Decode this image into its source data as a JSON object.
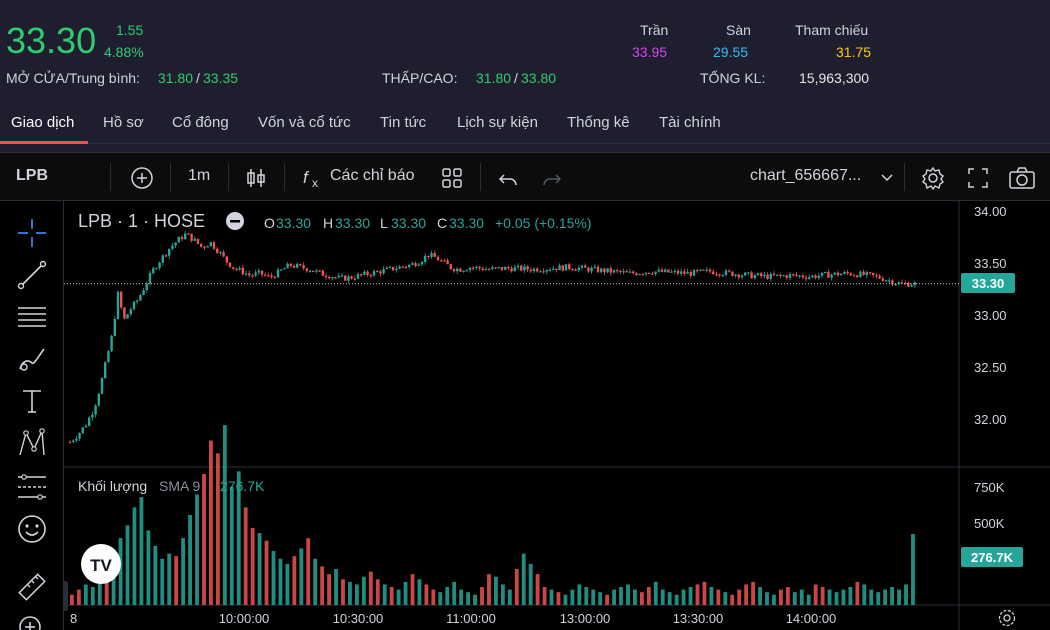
{
  "quote": {
    "price": "33.30",
    "change": "1.55",
    "change_pct": "4.88%",
    "open_avg_label": "MỞ CỬA/Trung bình:",
    "open": "31.80",
    "avg": "33.35",
    "low_high_label": "THẤP/CAO:",
    "low": "31.80",
    "high": "33.80",
    "ceiling_label": "Trần",
    "ceiling": "33.95",
    "floor_label": "Sàn",
    "floor": "29.55",
    "ref_label": "Tham chiếu",
    "ref": "31.75",
    "total_vol_label": "TỔNG KL:",
    "total_vol": "15,963,300",
    "colors": {
      "up": "#2ecc71",
      "ceiling": "#d946ef",
      "floor": "#38bdf8",
      "ref": "#facc15"
    }
  },
  "tabs": [
    {
      "label": "Giao dịch",
      "active": true
    },
    {
      "label": "Hồ sơ"
    },
    {
      "label": "Cổ đông"
    },
    {
      "label": "Vốn và cổ tức"
    },
    {
      "label": "Tin tức"
    },
    {
      "label": "Lịch sự kiện"
    },
    {
      "label": "Thống kê"
    },
    {
      "label": "Tài chính"
    }
  ],
  "toolbar": {
    "symbol": "LPB",
    "interval": "1m",
    "indicators_label": "Các chỉ báo",
    "layout_name": "chart_656667..."
  },
  "legend": {
    "title": "LPB · 1 · HOSE",
    "o_label": "O",
    "o": "33.30",
    "h_label": "H",
    "h": "33.30",
    "l_label": "L",
    "l": "33.30",
    "c_label": "C",
    "c": "33.30",
    "change": "+0.05 (+0.15%)"
  },
  "volume_legend": {
    "title": "Khối lượng",
    "sma": "SMA 9",
    "value": "276.7K"
  },
  "last_price_badge": "33.30",
  "last_volume_badge": "276.7K",
  "x_axis_start": "8",
  "chart_data": {
    "type": "candlestick",
    "price_axis": {
      "ticks": [
        "34.00",
        "33.50",
        "33.00",
        "32.50",
        "32.00"
      ],
      "ylim": [
        31.6,
        34.0
      ]
    },
    "volume_axis": {
      "ticks": [
        "750K",
        "500K"
      ]
    },
    "x_ticks": [
      "10:00:00",
      "10:30:00",
      "11:00:00",
      "13:00:00",
      "13:30:00",
      "14:00:00"
    ],
    "close_path": [
      [
        0,
        31.78
      ],
      [
        8,
        31.85
      ],
      [
        16,
        31.95
      ],
      [
        24,
        32.1
      ],
      [
        30,
        32.3
      ],
      [
        36,
        32.55
      ],
      [
        42,
        32.8
      ],
      [
        48,
        33.2
      ],
      [
        54,
        32.95
      ],
      [
        60,
        33.05
      ],
      [
        68,
        33.15
      ],
      [
        76,
        33.3
      ],
      [
        84,
        33.45
      ],
      [
        92,
        33.55
      ],
      [
        100,
        33.65
      ],
      [
        108,
        33.72
      ],
      [
        116,
        33.78
      ],
      [
        124,
        33.72
      ],
      [
        132,
        33.65
      ],
      [
        140,
        33.7
      ],
      [
        148,
        33.62
      ],
      [
        156,
        33.52
      ],
      [
        164,
        33.45
      ],
      [
        172,
        33.42
      ],
      [
        180,
        33.38
      ],
      [
        190,
        33.4
      ],
      [
        200,
        33.36
      ],
      [
        210,
        33.42
      ],
      [
        220,
        33.48
      ],
      [
        230,
        33.46
      ],
      [
        240,
        33.44
      ],
      [
        250,
        33.4
      ],
      [
        260,
        33.38
      ],
      [
        270,
        33.35
      ],
      [
        280,
        33.36
      ],
      [
        290,
        33.38
      ],
      [
        300,
        33.4
      ],
      [
        310,
        33.42
      ],
      [
        320,
        33.44
      ],
      [
        330,
        33.46
      ],
      [
        340,
        33.48
      ],
      [
        350,
        33.52
      ],
      [
        358,
        33.58
      ],
      [
        366,
        33.55
      ],
      [
        374,
        33.5
      ],
      [
        382,
        33.45
      ],
      [
        390,
        33.44
      ],
      [
        400,
        33.46
      ],
      [
        420,
        33.44
      ],
      [
        440,
        33.45
      ],
      [
        460,
        33.44
      ],
      [
        480,
        33.45
      ],
      [
        500,
        33.46
      ],
      [
        520,
        33.44
      ],
      [
        540,
        33.42
      ],
      [
        560,
        33.4
      ],
      [
        580,
        33.42
      ],
      [
        600,
        33.41
      ],
      [
        620,
        33.4
      ],
      [
        640,
        33.42
      ],
      [
        660,
        33.4
      ],
      [
        680,
        33.38
      ],
      [
        700,
        33.37
      ],
      [
        720,
        33.38
      ],
      [
        740,
        33.37
      ],
      [
        760,
        33.39
      ],
      [
        780,
        33.4
      ],
      [
        800,
        33.38
      ],
      [
        810,
        33.36
      ],
      [
        820,
        33.33
      ],
      [
        830,
        33.3
      ],
      [
        840,
        33.3
      ],
      [
        848,
        33.3
      ]
    ],
    "volume": [
      40,
      60,
      80,
      70,
      90,
      120,
      180,
      260,
      310,
      380,
      420,
      290,
      230,
      180,
      200,
      190,
      260,
      350,
      430,
      510,
      640,
      590,
      700,
      460,
      520,
      380,
      300,
      280,
      250,
      210,
      180,
      160,
      190,
      220,
      260,
      180,
      150,
      120,
      140,
      100,
      90,
      80,
      110,
      130,
      100,
      80,
      70,
      60,
      90,
      120,
      100,
      80,
      60,
      50,
      70,
      90,
      60,
      50,
      40,
      70,
      120,
      110,
      80,
      60,
      140,
      200,
      160,
      120,
      70,
      60,
      50,
      40,
      60,
      80,
      70,
      60,
      50,
      40,
      60,
      70,
      80,
      60,
      50,
      70,
      90,
      60,
      50,
      40,
      60,
      70,
      80,
      90,
      70,
      60,
      50,
      40,
      60,
      80,
      90,
      70,
      50,
      40,
      60,
      70,
      50,
      60,
      40,
      80,
      70,
      60,
      50,
      60,
      70,
      90,
      80,
      60,
      50,
      60,
      70,
      60,
      80,
      276
    ]
  }
}
